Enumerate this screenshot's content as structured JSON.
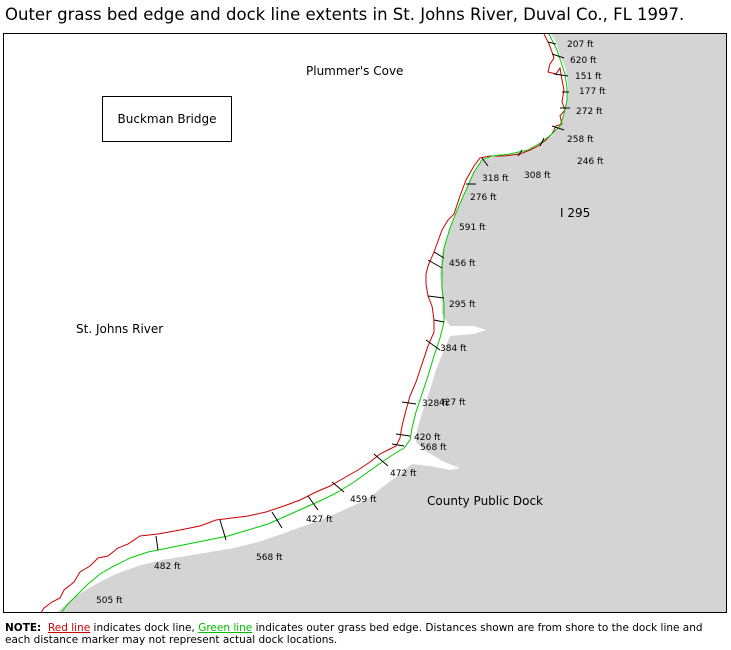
{
  "title": "Outer grass bed edge and dock line extents in St. Johns River, Duval Co., FL 1997.",
  "labels": {
    "plummers_cove": "Plummer's Cove",
    "buckman_bridge": "Buckman Bridge",
    "st_johns_river": "St. Johns River",
    "i295": "I 295",
    "county_public_dock": "County Public Dock"
  },
  "distances": [
    "207 ft",
    "620 ft",
    "151 ft",
    "177 ft",
    "272 ft",
    "258 ft",
    "246 ft",
    "308 ft",
    "318 ft",
    "276 ft",
    "591 ft",
    "456 ft",
    "295 ft",
    "384 ft",
    "427 ft",
    "328 ft",
    "420 ft",
    "568 ft",
    "472 ft",
    "459 ft",
    "427 ft",
    "568 ft",
    "482 ft",
    "505 ft"
  ],
  "colors": {
    "land": "#d4d4d4",
    "water": "#ffffff",
    "dock_line": "#cc0000",
    "grass_edge": "#00cc00",
    "marker": "#000000"
  },
  "note": {
    "label": "NOTE:",
    "red_text": "Red line",
    "part1": " indicates dock line, ",
    "green_text": "Green line",
    "part2": " indicates outer grass bed edge. Distances shown are from shore to the dock line and each distance marker may not represent actual dock locations."
  }
}
